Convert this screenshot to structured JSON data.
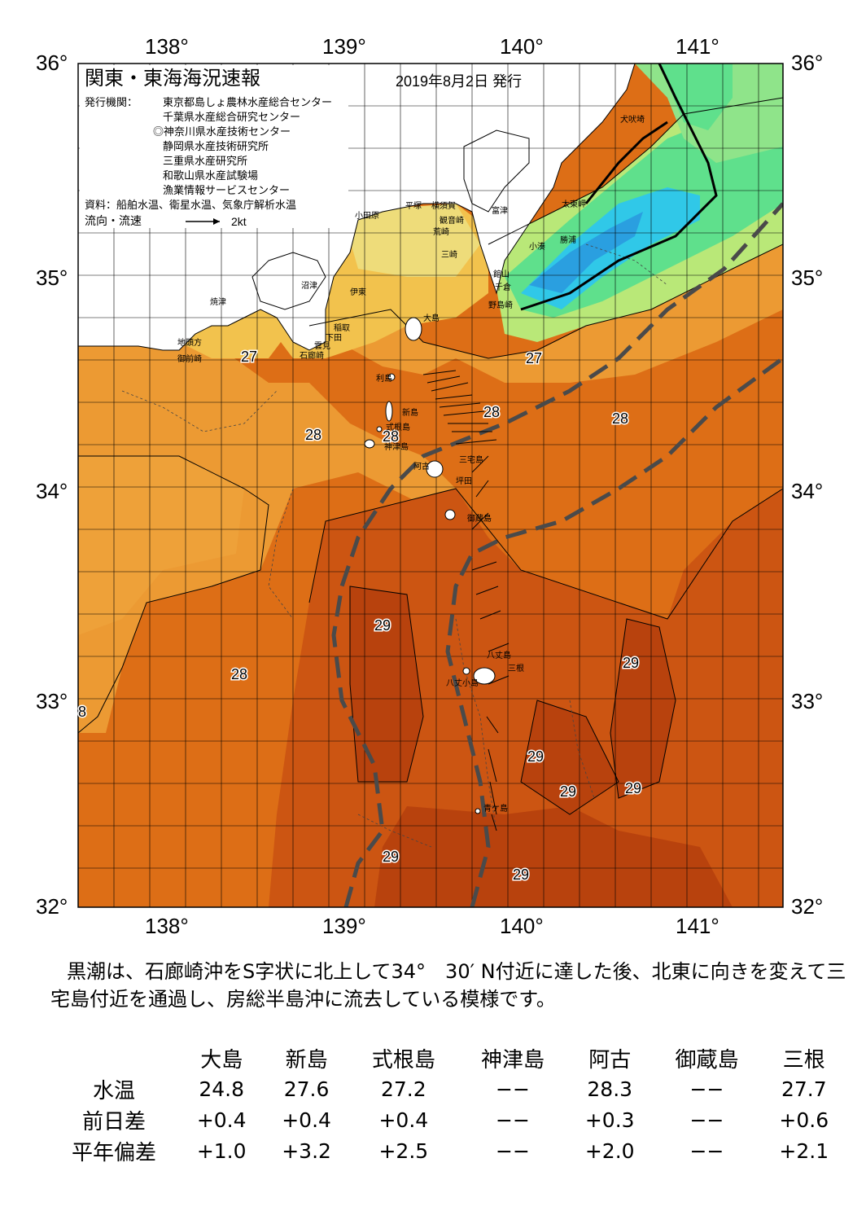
{
  "map": {
    "title": "関東・東海海況速報",
    "issue_date": "2019年8月2日 発行",
    "issuer_label": "発行機関：",
    "issuers": [
      "東京都島しょ農林水産総合センター",
      "千葉県水産総合研究センター",
      "◎神奈川県水産技術センター",
      "静岡県水産技術研究所",
      "三重県水産研究所",
      "和歌山県水産試験場",
      "漁業情報サービスセンター"
    ],
    "source": "資料：船舶水温、衛星水温、気象庁解析水温",
    "legend_label": "流向・流速",
    "legend_scale": "2kt",
    "lon_labels": [
      "138°",
      "139°",
      "140°",
      "141°"
    ],
    "lat_labels": [
      "36°",
      "35°",
      "34°",
      "33°",
      "32°"
    ],
    "temperature_labels": [
      "27",
      "27",
      "28",
      "28",
      "28",
      "28",
      "28",
      "29",
      "29",
      "29",
      "29",
      "29",
      "29",
      "29",
      "8"
    ],
    "place_labels": [
      "犬吠埼",
      "太東岬",
      "勝浦",
      "小湊",
      "館山",
      "千倉",
      "野島崎",
      "富津",
      "観音崎",
      "横須賀",
      "荒崎",
      "三崎",
      "平塚",
      "小田原",
      "沼津",
      "伊東",
      "焼津",
      "地頭方",
      "御前崎",
      "稲取",
      "下田",
      "石廊崎",
      "雲見",
      "大島",
      "利島",
      "新島",
      "式根島",
      "神津島",
      "阿古",
      "三宅島",
      "坪田",
      "御蔵島",
      "八丈島",
      "八丈小島",
      "三根",
      "青ケ島"
    ],
    "colors": {
      "warm29": "#c0460f",
      "warm28": "#dd6e16",
      "warm27": "#ec9a33",
      "mid26": "#f2c24d",
      "mild25": "#eedc7a",
      "cool24": "#b9e878",
      "cool22": "#5fe08c",
      "cold20": "#30c8e8",
      "cold18": "#2a9fe0",
      "kuroshio_axis": "#4a4a4a"
    }
  },
  "narrative": "黒潮は、石廊崎沖をS字状に北上して34°　30′ N付近に達した後、北東に向きを変えて三宅島付近を通過し、房総半島沖に流去している模様です。",
  "table": {
    "headers": [
      "大島",
      "新島",
      "式根島",
      "神津島",
      "阿古",
      "御蔵島",
      "三根"
    ],
    "rows": [
      {
        "label": "水温",
        "values": [
          "24.8",
          "27.6",
          "27.2",
          "−−",
          "28.3",
          "−−",
          "27.7"
        ]
      },
      {
        "label": "前日差",
        "values": [
          "+0.4",
          "+0.4",
          "+0.4",
          "−−",
          "+0.3",
          "−−",
          "+0.6"
        ]
      },
      {
        "label": "平年偏差",
        "values": [
          "+1.0",
          "+3.2",
          "+2.5",
          "−−",
          "+2.0",
          "−−",
          "+2.1"
        ]
      }
    ]
  }
}
